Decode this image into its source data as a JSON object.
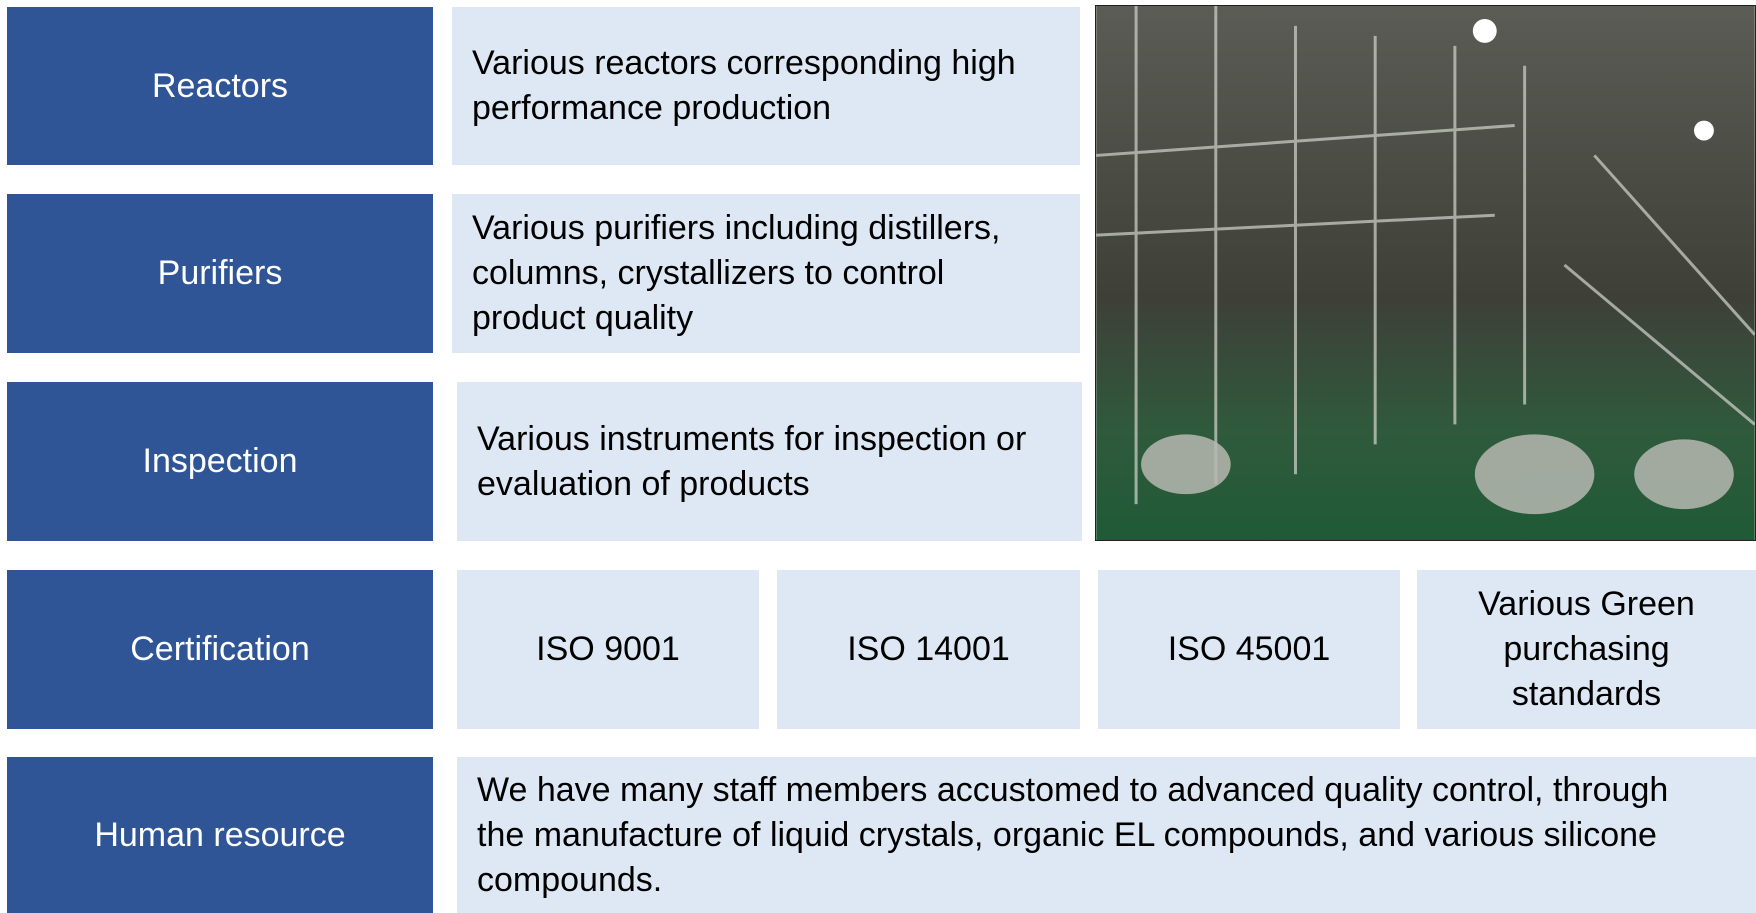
{
  "rows": [
    {
      "label": "Reactors",
      "description": "Various reactors corresponding high performance production"
    },
    {
      "label": "Purifiers",
      "description": "Various purifiers including distillers, columns, crystallizers to control product quality"
    },
    {
      "label": "Inspection",
      "description": "Various instruments for inspection or evaluation of products"
    },
    {
      "label": "Certification",
      "items": [
        "ISO 9001",
        "ISO 14001",
        "ISO 45001",
        "Various Green purchasing standards"
      ]
    },
    {
      "label": "Human resource",
      "description": "We have many staff members accustomed to advanced quality control, through the manufacture of liquid crystals, organic EL compounds, and various silicone compounds."
    }
  ]
}
